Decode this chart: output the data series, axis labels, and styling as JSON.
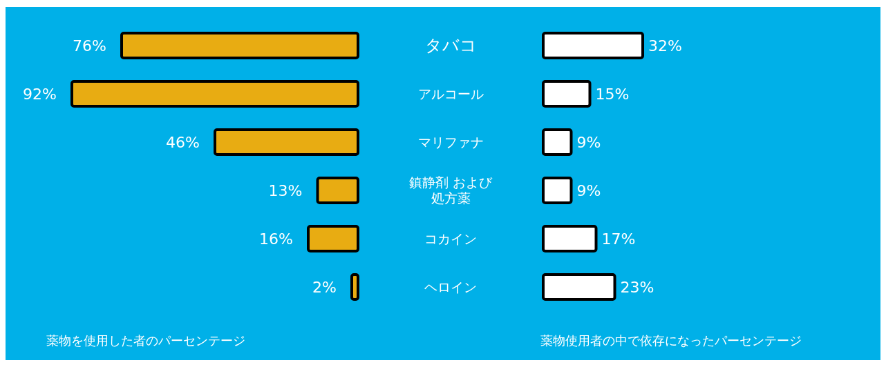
{
  "chart_data": [
    {
      "type": "bar",
      "orientation": "horizontal",
      "categories": [
        "タバコ",
        "アルコール",
        "マリファナ",
        "鎮静剤 および処方薬",
        "コカイン",
        "ヘロイン"
      ],
      "values": [
        76,
        92,
        46,
        13,
        16,
        2
      ],
      "value_labels": [
        "76%",
        "92%",
        "46%",
        "13%",
        "16%",
        "2%"
      ],
      "color": "#e8ac12",
      "xlabel": "薬物を使用した者のパーセンテージ",
      "tick_labels": false
    },
    {
      "type": "bar",
      "orientation": "horizontal",
      "categories": [
        null,
        null,
        null,
        null,
        null,
        null
      ],
      "values": [
        32,
        15,
        9,
        9,
        17,
        23
      ],
      "value_labels": [
        "32%",
        "15%",
        "9%",
        "9%",
        "17%",
        "23%"
      ],
      "color": "#ffffff",
      "xlabel": "薬物使用者の中で依存になったパーセンテージ",
      "tick_labels": false
    }
  ]
}
